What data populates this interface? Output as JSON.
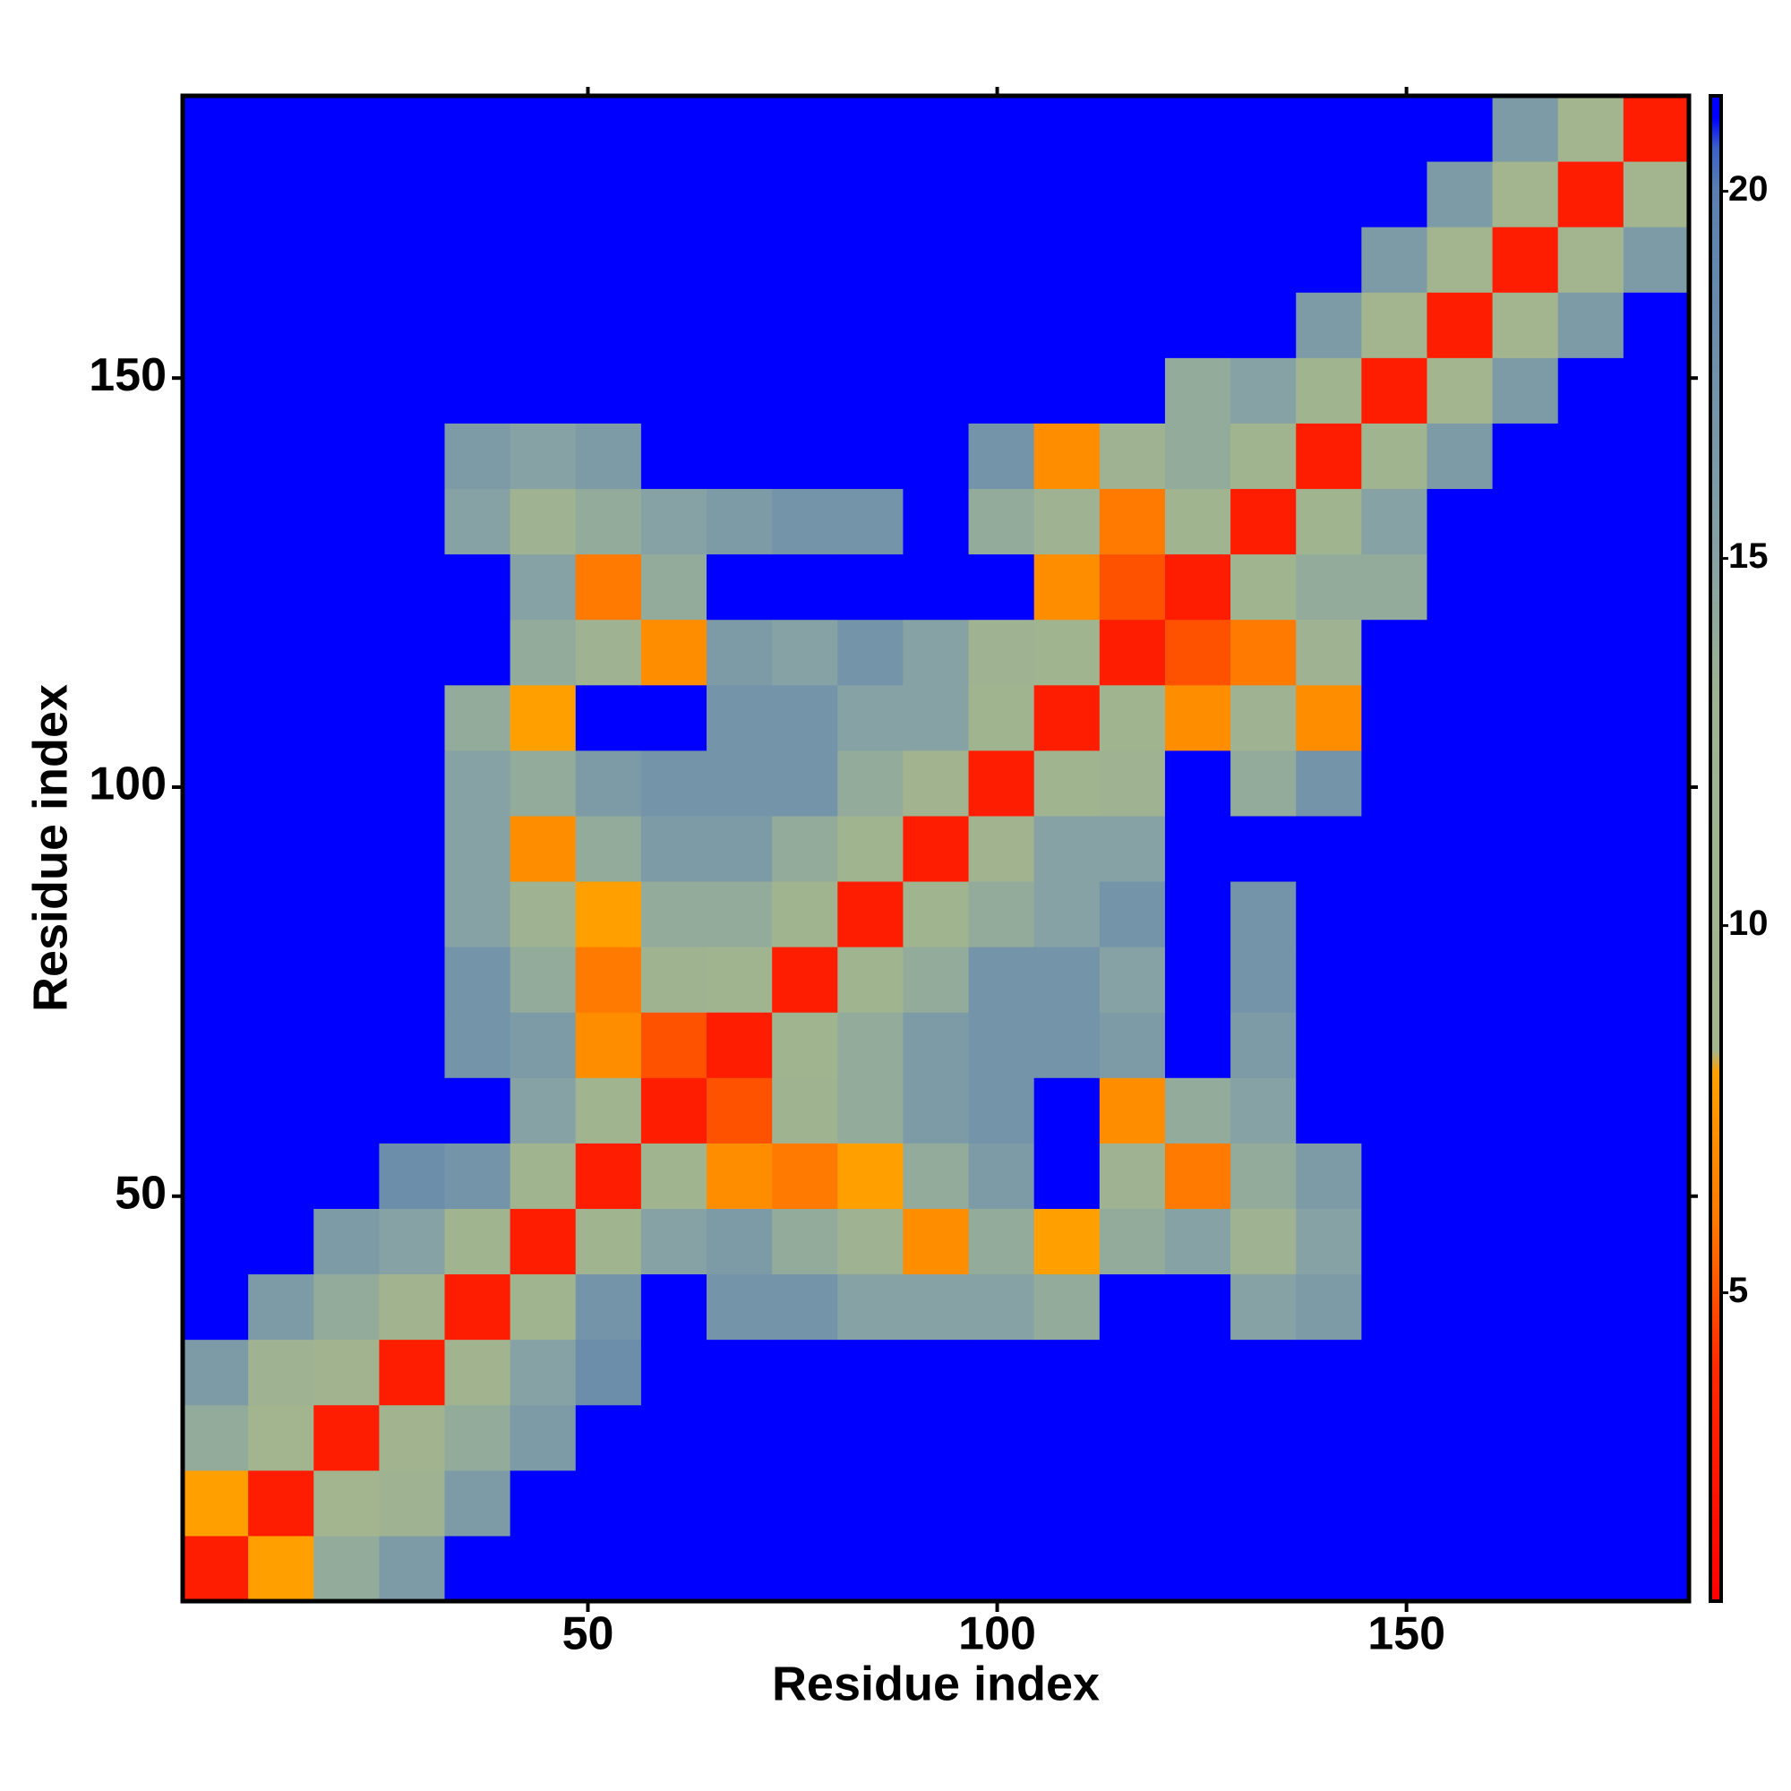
{
  "chart_data": {
    "type": "heatmap",
    "x_label": "Residue index",
    "y_label": "Residue index",
    "x": [
      4.5,
      12.5,
      20.5,
      28.5,
      36.5,
      44.5,
      52.5,
      60.5,
      68.5,
      76.5,
      84.5,
      92.5,
      100.5,
      108.5,
      116.5,
      124.5,
      132.5,
      140.5,
      148.5,
      156.5,
      164.5,
      172.5,
      180.5
    ],
    "y": [
      4.5,
      12.5,
      20.5,
      28.5,
      36.5,
      44.5,
      52.5,
      60.5,
      68.5,
      76.5,
      84.5,
      92.5,
      100.5,
      108.5,
      116.5,
      124.5,
      132.5,
      140.5,
      148.5,
      156.5,
      164.5,
      172.5,
      180.5
    ],
    "values": [
      [
        3,
        8,
        14,
        16,
        21,
        21,
        21,
        21,
        21,
        21,
        21,
        21,
        21,
        21,
        21,
        21,
        21,
        21,
        21,
        21,
        21,
        21,
        21
      ],
      [
        8,
        3,
        9,
        13,
        16,
        21,
        21,
        21,
        21,
        21,
        21,
        21,
        21,
        21,
        21,
        21,
        21,
        21,
        21,
        21,
        21,
        21,
        21
      ],
      [
        14,
        9,
        3,
        10,
        14,
        16,
        21,
        21,
        21,
        21,
        21,
        21,
        21,
        21,
        21,
        21,
        21,
        21,
        21,
        21,
        21,
        21,
        21
      ],
      [
        16,
        13,
        10,
        3,
        10,
        15,
        18,
        21,
        21,
        21,
        21,
        21,
        21,
        21,
        21,
        21,
        21,
        21,
        21,
        21,
        21,
        21,
        21
      ],
      [
        21,
        16,
        14,
        10,
        3,
        11,
        17,
        21,
        17,
        17,
        15,
        15,
        15,
        14,
        21,
        21,
        15,
        16,
        21,
        21,
        21,
        21,
        21
      ],
      [
        21,
        21,
        16,
        15,
        11,
        3,
        11,
        15,
        16,
        14,
        13,
        7,
        14,
        8,
        14,
        15,
        13,
        15,
        21,
        21,
        21,
        21,
        21
      ],
      [
        21,
        21,
        21,
        18,
        17,
        11,
        3,
        11,
        7,
        6,
        8,
        14,
        16,
        21,
        13,
        6,
        14,
        16,
        21,
        21,
        21,
        21,
        21
      ],
      [
        21,
        21,
        21,
        21,
        21,
        15,
        11,
        3,
        5,
        12,
        14,
        16,
        17,
        21,
        7,
        14,
        15,
        21,
        21,
        21,
        21,
        21,
        21
      ],
      [
        21,
        21,
        21,
        21,
        17,
        16,
        7,
        5,
        3,
        11,
        14,
        16,
        17,
        17,
        16,
        21,
        16,
        21,
        21,
        21,
        21,
        21,
        21
      ],
      [
        21,
        21,
        21,
        21,
        17,
        14,
        6,
        12,
        11,
        3,
        11,
        14,
        17,
        17,
        15,
        21,
        17,
        21,
        21,
        21,
        21,
        21,
        21
      ],
      [
        21,
        21,
        21,
        21,
        15,
        13,
        8,
        14,
        14,
        11,
        3,
        11,
        14,
        15,
        17,
        21,
        17,
        21,
        21,
        21,
        21,
        21,
        21
      ],
      [
        21,
        21,
        21,
        21,
        15,
        7,
        14,
        16,
        16,
        14,
        11,
        3,
        10,
        15,
        15,
        21,
        21,
        21,
        21,
        21,
        21,
        21,
        21
      ],
      [
        21,
        21,
        21,
        21,
        15,
        14,
        16,
        17,
        17,
        17,
        14,
        10,
        3,
        11,
        13,
        21,
        14,
        17,
        21,
        21,
        21,
        21,
        21
      ],
      [
        21,
        21,
        21,
        21,
        14,
        8,
        21,
        21,
        17,
        17,
        15,
        15,
        11,
        3,
        11,
        7,
        13,
        7,
        21,
        21,
        21,
        21,
        21
      ],
      [
        21,
        21,
        21,
        21,
        21,
        14,
        13,
        7,
        16,
        15,
        17,
        15,
        13,
        11,
        3,
        5,
        6,
        13,
        21,
        21,
        21,
        21,
        21
      ],
      [
        21,
        21,
        21,
        21,
        21,
        15,
        6,
        14,
        21,
        21,
        21,
        21,
        21,
        7,
        5,
        3,
        11,
        14,
        14,
        21,
        21,
        21,
        21
      ],
      [
        21,
        21,
        21,
        21,
        15,
        13,
        14,
        15,
        16,
        17,
        17,
        21,
        14,
        13,
        6,
        11,
        3,
        11,
        15,
        21,
        21,
        21,
        21
      ],
      [
        21,
        21,
        21,
        21,
        16,
        15,
        16,
        21,
        21,
        21,
        21,
        21,
        17,
        7,
        13,
        14,
        11,
        3,
        11,
        16,
        21,
        21,
        21
      ],
      [
        21,
        21,
        21,
        21,
        21,
        21,
        21,
        21,
        21,
        21,
        21,
        21,
        21,
        21,
        21,
        14,
        15,
        11,
        3,
        9,
        16,
        21,
        21
      ],
      [
        21,
        21,
        21,
        21,
        21,
        21,
        21,
        21,
        21,
        21,
        21,
        21,
        21,
        21,
        21,
        21,
        21,
        16,
        9,
        3,
        9,
        16,
        21
      ],
      [
        21,
        21,
        21,
        21,
        21,
        21,
        21,
        21,
        21,
        21,
        21,
        21,
        21,
        21,
        21,
        21,
        21,
        21,
        16,
        9,
        3,
        9,
        16
      ],
      [
        21,
        21,
        21,
        21,
        21,
        21,
        21,
        21,
        21,
        21,
        21,
        21,
        21,
        21,
        21,
        21,
        21,
        21,
        21,
        16,
        9,
        3,
        9
      ],
      [
        21,
        21,
        21,
        21,
        21,
        21,
        21,
        21,
        21,
        21,
        21,
        21,
        21,
        21,
        21,
        21,
        21,
        21,
        21,
        21,
        16,
        9,
        3
      ]
    ],
    "xlim": [
      0.5,
      184.5
    ],
    "ylim": [
      0.5,
      184.5
    ],
    "xticks": [
      50,
      100,
      150
    ],
    "yticks": [
      50,
      100,
      150
    ],
    "zlim": [
      0.8,
      21.3
    ],
    "zticks": [
      5,
      10,
      15,
      20
    ],
    "colorscale": [
      [
        0.8,
        "#ff0000"
      ],
      [
        4,
        "#ff2a00"
      ],
      [
        6,
        "#ff7a00"
      ],
      [
        8,
        "#ffa000"
      ],
      [
        8.3,
        "#a3b58e"
      ],
      [
        13,
        "#9fb392"
      ],
      [
        15,
        "#86a2a4"
      ],
      [
        20,
        "#5a80b0"
      ],
      [
        20.6,
        "#3a60c8"
      ],
      [
        21,
        "#0000ff"
      ],
      [
        21.3,
        "#0000ff"
      ]
    ]
  }
}
